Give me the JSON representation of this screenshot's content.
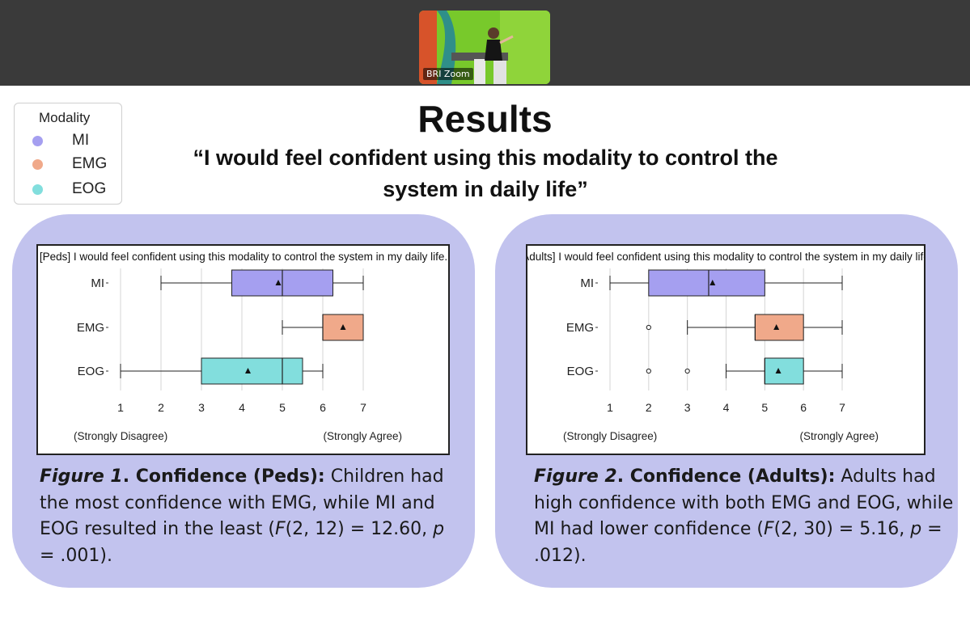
{
  "video": {
    "label": "BRI Zoom"
  },
  "legend": {
    "title": "Modality",
    "items": [
      {
        "label": "MI",
        "color": "#a59ff0"
      },
      {
        "label": "EMG",
        "color": "#f0a98a"
      },
      {
        "label": "EOG",
        "color": "#82dedd"
      }
    ]
  },
  "slide": {
    "title": "Results",
    "subtitle": "“I would feel confident using this modality to control the system in daily life”"
  },
  "chart_data": [
    {
      "type": "box",
      "title": "[Peds] I would feel confident using this modality to control the system in my daily life.",
      "categories": [
        "MI",
        "EMG",
        "EOG"
      ],
      "xlim": [
        1,
        7
      ],
      "xticks": [
        "1",
        "2",
        "3",
        "4",
        "5",
        "6",
        "7"
      ],
      "x_anchor_labels": [
        "(Strongly Disagree)",
        "(Strongly Agree)"
      ],
      "grid": true,
      "series": [
        {
          "category": "MI",
          "min": 2,
          "q1": 3.75,
          "median": 5,
          "q3": 6.25,
          "max": 7,
          "mean": 4.9,
          "outliers": [],
          "color": "#a59ff0"
        },
        {
          "category": "EMG",
          "min": 5,
          "q1": 6,
          "median": 6,
          "q3": 7,
          "max": 7,
          "mean": 6.5,
          "outliers": [],
          "color": "#f0a98a"
        },
        {
          "category": "EOG",
          "min": 1,
          "q1": 3,
          "median": 5,
          "q3": 5.5,
          "max": 6,
          "mean": 4.15,
          "outliers": [],
          "color": "#82dedd"
        }
      ]
    },
    {
      "type": "box",
      "title": "[Adults] I would feel confident using this modality to control the system in my daily life.",
      "categories": [
        "MI",
        "EMG",
        "EOG"
      ],
      "xlim": [
        1,
        7
      ],
      "xticks": [
        "1",
        "2",
        "3",
        "4",
        "5",
        "6",
        "7"
      ],
      "x_anchor_labels": [
        "(Strongly Disagree)",
        "(Strongly Agree)"
      ],
      "grid": true,
      "series": [
        {
          "category": "MI",
          "min": 1,
          "q1": 2,
          "median": 3.55,
          "q3": 5,
          "max": 7,
          "mean": 3.65,
          "outliers": [],
          "color": "#a59ff0"
        },
        {
          "category": "EMG",
          "min": 3,
          "q1": 4.75,
          "median": 4.75,
          "q3": 6,
          "max": 7,
          "mean": 5.3,
          "outliers": [
            2
          ],
          "color": "#f0a98a"
        },
        {
          "category": "EOG",
          "min": 4,
          "q1": 5,
          "median": 5,
          "q3": 6,
          "max": 7,
          "mean": 5.35,
          "outliers": [
            2,
            3
          ],
          "color": "#82dedd"
        }
      ]
    }
  ],
  "captions": [
    [
      {
        "t": "Figure 1",
        "b": true,
        "i": true
      },
      {
        "t": ". Confidence (Peds):",
        "b": true
      },
      {
        "t": " Children had the most confidence with EMG, while MI and EOG resulted in the least ("
      },
      {
        "t": "F",
        "i": true
      },
      {
        "t": "(2, 12) = 12.60, "
      },
      {
        "t": "p",
        "i": true
      },
      {
        "t": " = .001)."
      }
    ],
    [
      {
        "t": "Figure 2",
        "b": true,
        "i": true
      },
      {
        "t": ". Confidence (Adults):",
        "b": true
      },
      {
        "t": " Adults had high confidence with both EMG and EOG, while MI had lower confidence ("
      },
      {
        "t": "F",
        "i": true
      },
      {
        "t": "(2, 30) = 5.16, "
      },
      {
        "t": "p",
        "i": true
      },
      {
        "t": " = .012)."
      }
    ]
  ]
}
